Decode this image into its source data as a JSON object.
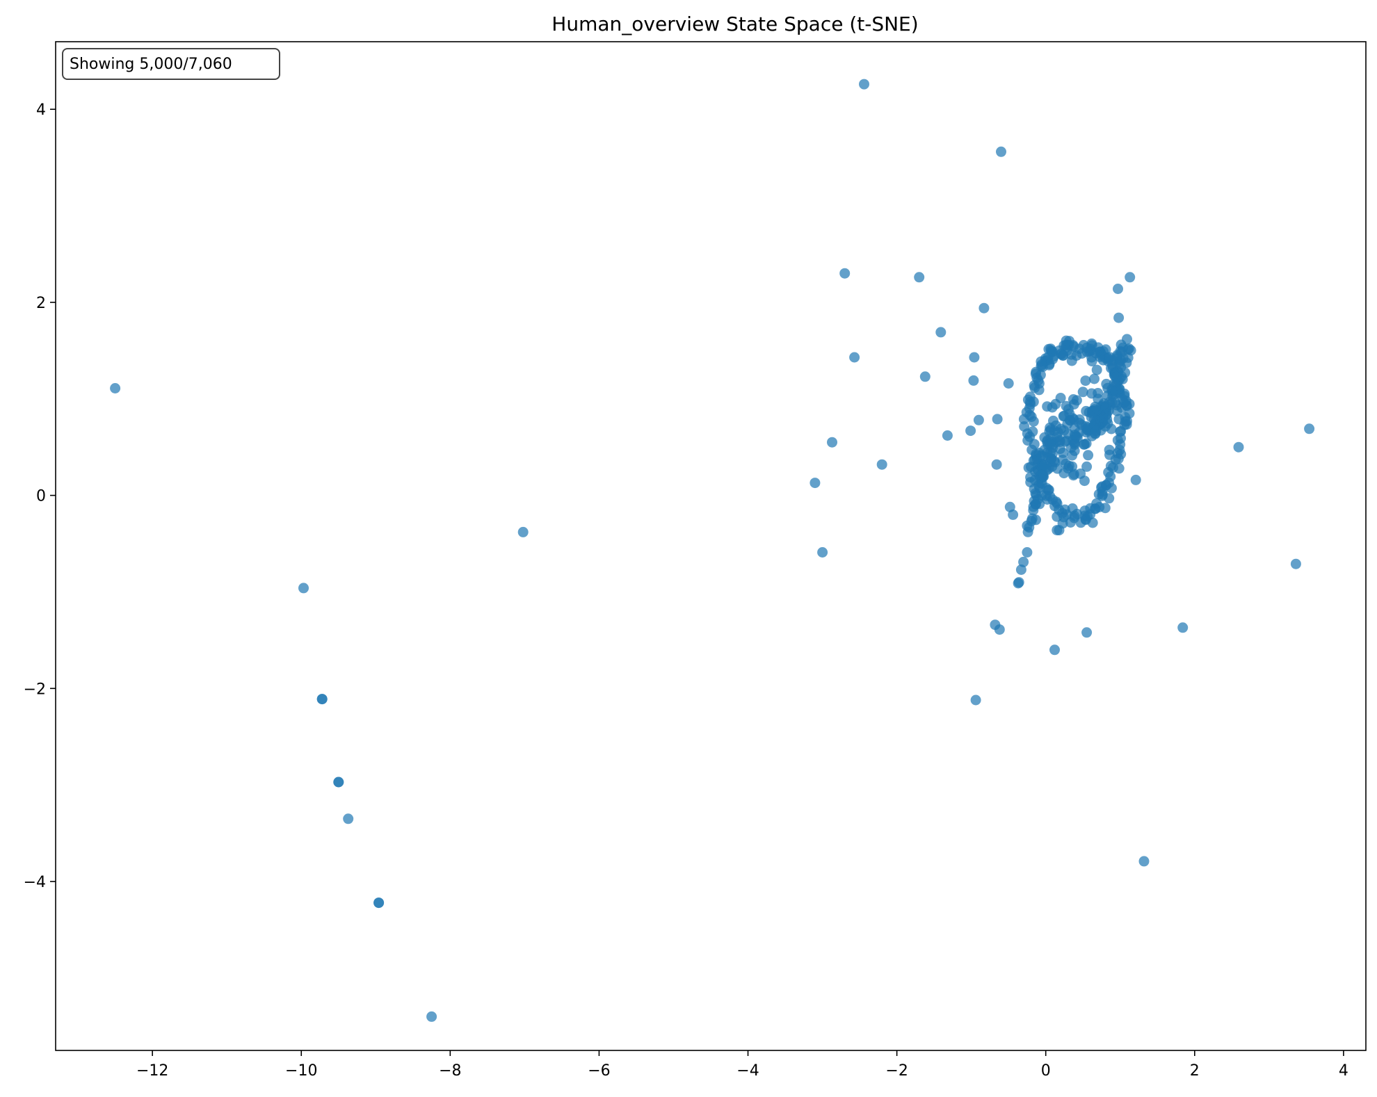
{
  "chart_data": {
    "type": "scatter",
    "title": "Human_overview State Space (t-SNE)",
    "xlabel": "",
    "ylabel": "",
    "xlim": [
      -13.3,
      4.3
    ],
    "ylim": [
      -5.75,
      4.7
    ],
    "xticks": [
      -12,
      -10,
      -8,
      -6,
      -4,
      -2,
      0,
      2,
      4
    ],
    "xtick_labels": [
      "−12",
      "−10",
      "−8",
      "−6",
      "−4",
      "−2",
      "0",
      "2",
      "4"
    ],
    "yticks": [
      -4,
      -2,
      0,
      2,
      4
    ],
    "ytick_labels": [
      "−4",
      "−2",
      "0",
      "2",
      "4"
    ],
    "grid": false,
    "legend": "none",
    "annotation": "Showing 5,000/7,060",
    "color": "#1f77b4",
    "marker_opacity": 0.7,
    "cluster": {
      "description_center": [
        0.45,
        0.75
      ],
      "approx_points": 4930,
      "x_range": [
        -0.45,
        1.15
      ],
      "y_range": [
        -0.45,
        1.8
      ]
    },
    "outliers": [
      {
        "x": -12.5,
        "y": 1.11
      },
      {
        "x": -9.97,
        "y": -0.96
      },
      {
        "x": -9.72,
        "y": -2.11
      },
      {
        "x": -9.72,
        "y": -2.11
      },
      {
        "x": -9.5,
        "y": -2.97
      },
      {
        "x": -9.5,
        "y": -2.97
      },
      {
        "x": -9.37,
        "y": -3.35
      },
      {
        "x": -8.96,
        "y": -4.22
      },
      {
        "x": -8.96,
        "y": -4.22
      },
      {
        "x": -8.25,
        "y": -5.4
      },
      {
        "x": -7.02,
        "y": -0.38
      },
      {
        "x": -3.1,
        "y": 0.13
      },
      {
        "x": -3.0,
        "y": -0.59
      },
      {
        "x": -2.87,
        "y": 0.55
      },
      {
        "x": -2.7,
        "y": 2.3
      },
      {
        "x": -2.57,
        "y": 1.43
      },
      {
        "x": -2.44,
        "y": 4.26
      },
      {
        "x": -2.2,
        "y": 0.32
      },
      {
        "x": -1.7,
        "y": 2.26
      },
      {
        "x": -1.62,
        "y": 1.23
      },
      {
        "x": -1.41,
        "y": 1.69
      },
      {
        "x": -1.32,
        "y": 0.62
      },
      {
        "x": -1.01,
        "y": 0.67
      },
      {
        "x": -0.96,
        "y": 1.43
      },
      {
        "x": -0.97,
        "y": 1.19
      },
      {
        "x": -0.9,
        "y": 0.78
      },
      {
        "x": -0.83,
        "y": 1.94
      },
      {
        "x": -0.94,
        "y": -2.12
      },
      {
        "x": -0.68,
        "y": -1.34
      },
      {
        "x": -0.62,
        "y": -1.39
      },
      {
        "x": -0.66,
        "y": 0.32
      },
      {
        "x": -0.65,
        "y": 0.79
      },
      {
        "x": -0.6,
        "y": 3.56
      },
      {
        "x": -0.5,
        "y": 1.16
      },
      {
        "x": -0.48,
        "y": -0.12
      },
      {
        "x": -0.44,
        "y": -0.2
      },
      {
        "x": -0.37,
        "y": -0.91
      },
      {
        "x": -0.36,
        "y": -0.9
      },
      {
        "x": -0.33,
        "y": -0.77
      },
      {
        "x": -0.3,
        "y": -0.69
      },
      {
        "x": -0.25,
        "y": -0.59
      },
      {
        "x": 0.12,
        "y": -1.6
      },
      {
        "x": 0.15,
        "y": -0.36
      },
      {
        "x": 0.18,
        "y": -0.36
      },
      {
        "x": 0.15,
        "y": -0.22
      },
      {
        "x": 0.55,
        "y": -1.42
      },
      {
        "x": 0.8,
        "y": -0.13
      },
      {
        "x": 0.85,
        "y": -0.03
      },
      {
        "x": 0.97,
        "y": 2.14
      },
      {
        "x": 0.98,
        "y": 1.84
      },
      {
        "x": 1.13,
        "y": 2.26
      },
      {
        "x": 1.21,
        "y": 0.16
      },
      {
        "x": 1.32,
        "y": -3.79
      },
      {
        "x": 1.84,
        "y": -1.37
      },
      {
        "x": 2.59,
        "y": 0.5
      },
      {
        "x": 3.36,
        "y": -0.71
      },
      {
        "x": 3.54,
        "y": 0.69
      }
    ]
  }
}
